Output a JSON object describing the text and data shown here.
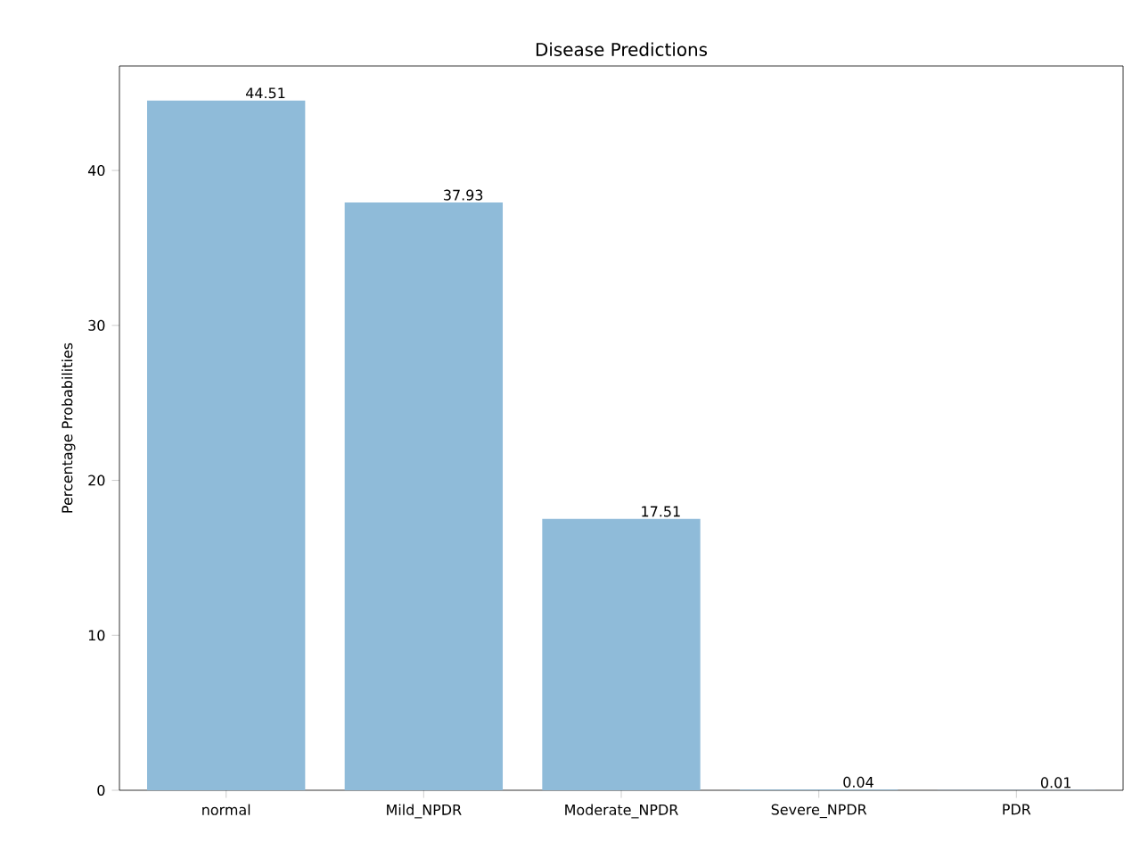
{
  "chart_data": {
    "type": "bar",
    "title": "Disease Predictions",
    "ylabel": "Percentage Probabilities",
    "categories": [
      "normal",
      "Mild_NPDR",
      "Moderate_NPDR",
      "Severe_NPDR",
      "PDR"
    ],
    "values": [
      44.51,
      37.93,
      17.51,
      0.04,
      0.01
    ],
    "color": "#8fbbd9",
    "ylim": [
      0,
      46.74
    ],
    "yticks": [
      0,
      10,
      20,
      30,
      40
    ],
    "data_labels": true
  }
}
